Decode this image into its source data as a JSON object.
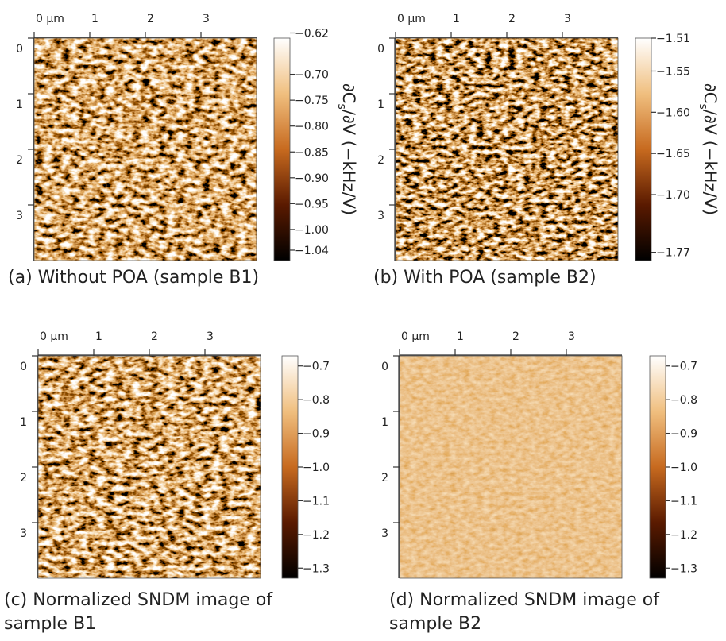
{
  "panels": [
    {
      "caption": [
        "(a) Without POA (sample B1)"
      ],
      "x_axis": {
        "lim": [
          0,
          4
        ],
        "ticks": [
          {
            "value": 0,
            "label": "0 µm"
          },
          1,
          2,
          3
        ]
      },
      "y_axis": {
        "lim": [
          0,
          4
        ],
        "ticks": [
          0,
          1,
          2,
          3
        ]
      },
      "colorbar": {
        "lim": [
          -1.06,
          -0.63
        ],
        "ticks": [
          {
            "value": -0.62,
            "label": "−0.62"
          },
          {
            "value": -0.7,
            "label": "−0.70"
          },
          {
            "value": -0.75,
            "label": "−0.75"
          },
          {
            "value": -0.8,
            "label": "−0.80"
          },
          {
            "value": -0.85,
            "label": "−0.85"
          },
          {
            "value": -0.9,
            "label": "−0.90"
          },
          {
            "value": -0.95,
            "label": "−0.95"
          },
          {
            "value": -1.0,
            "label": "−1.00"
          },
          {
            "value": -1.04,
            "label": "−1.04"
          }
        ],
        "label": [
          "∂C",
          "s",
          "/∂V (−kHz/V)"
        ]
      }
    },
    {
      "caption": [
        "(b) With POA (sample B2)"
      ],
      "x_axis": {
        "lim": [
          0,
          4
        ],
        "ticks": [
          {
            "value": 0,
            "label": "0 µm"
          },
          1,
          2,
          3
        ]
      },
      "y_axis": {
        "lim": [
          0,
          4
        ],
        "ticks": [
          0,
          1,
          2,
          3
        ]
      },
      "colorbar": {
        "lim": [
          -1.78,
          -1.51
        ],
        "ticks": [
          {
            "value": -1.51,
            "label": "−1.51"
          },
          {
            "value": -1.55,
            "label": "−1.55"
          },
          {
            "value": -1.6,
            "label": "−1.60"
          },
          {
            "value": -1.65,
            "label": "−1.65"
          },
          {
            "value": -1.7,
            "label": "−1.70"
          },
          {
            "value": -1.77,
            "label": "−1.77"
          }
        ],
        "label": [
          "∂C",
          "s",
          "/∂V (−kHz/V)"
        ]
      }
    },
    {
      "caption": [
        "(c) Normalized SNDM image of",
        "sample B1"
      ],
      "x_axis": {
        "lim": [
          0,
          4
        ],
        "ticks": [
          {
            "value": 0,
            "label": "0 µm"
          },
          1,
          2,
          3
        ]
      },
      "y_axis": {
        "lim": [
          0,
          4
        ],
        "ticks": [
          0,
          1,
          2,
          3
        ]
      },
      "colorbar": {
        "lim": [
          -1.33,
          -0.67
        ],
        "ticks": [
          {
            "value": -0.7,
            "label": "−0.7"
          },
          {
            "value": -0.8,
            "label": "−0.8"
          },
          {
            "value": -0.9,
            "label": "−0.9"
          },
          {
            "value": -1.0,
            "label": "−1.0"
          },
          {
            "value": -1.1,
            "label": "−1.1"
          },
          {
            "value": -1.2,
            "label": "−1.2"
          },
          {
            "value": -1.3,
            "label": "−1.3"
          }
        ]
      }
    },
    {
      "caption": [
        "(d) Normalized SNDM image of",
        "sample B2"
      ],
      "x_axis": {
        "lim": [
          0,
          4
        ],
        "ticks": [
          {
            "value": 0,
            "label": "0 µm"
          },
          1,
          2,
          3
        ]
      },
      "y_axis": {
        "lim": [
          0,
          4
        ],
        "ticks": [
          0,
          1,
          2,
          3
        ]
      },
      "colorbar": {
        "lim": [
          -1.33,
          -0.67
        ],
        "ticks": [
          {
            "value": -0.7,
            "label": "−0.7"
          },
          {
            "value": -0.8,
            "label": "−0.8"
          },
          {
            "value": -0.9,
            "label": "−0.9"
          },
          {
            "value": -1.0,
            "label": "−1.0"
          },
          {
            "value": -1.1,
            "label": "−1.1"
          },
          {
            "value": -1.2,
            "label": "−1.2"
          },
          {
            "value": -1.3,
            "label": "−1.3"
          }
        ]
      }
    }
  ]
}
